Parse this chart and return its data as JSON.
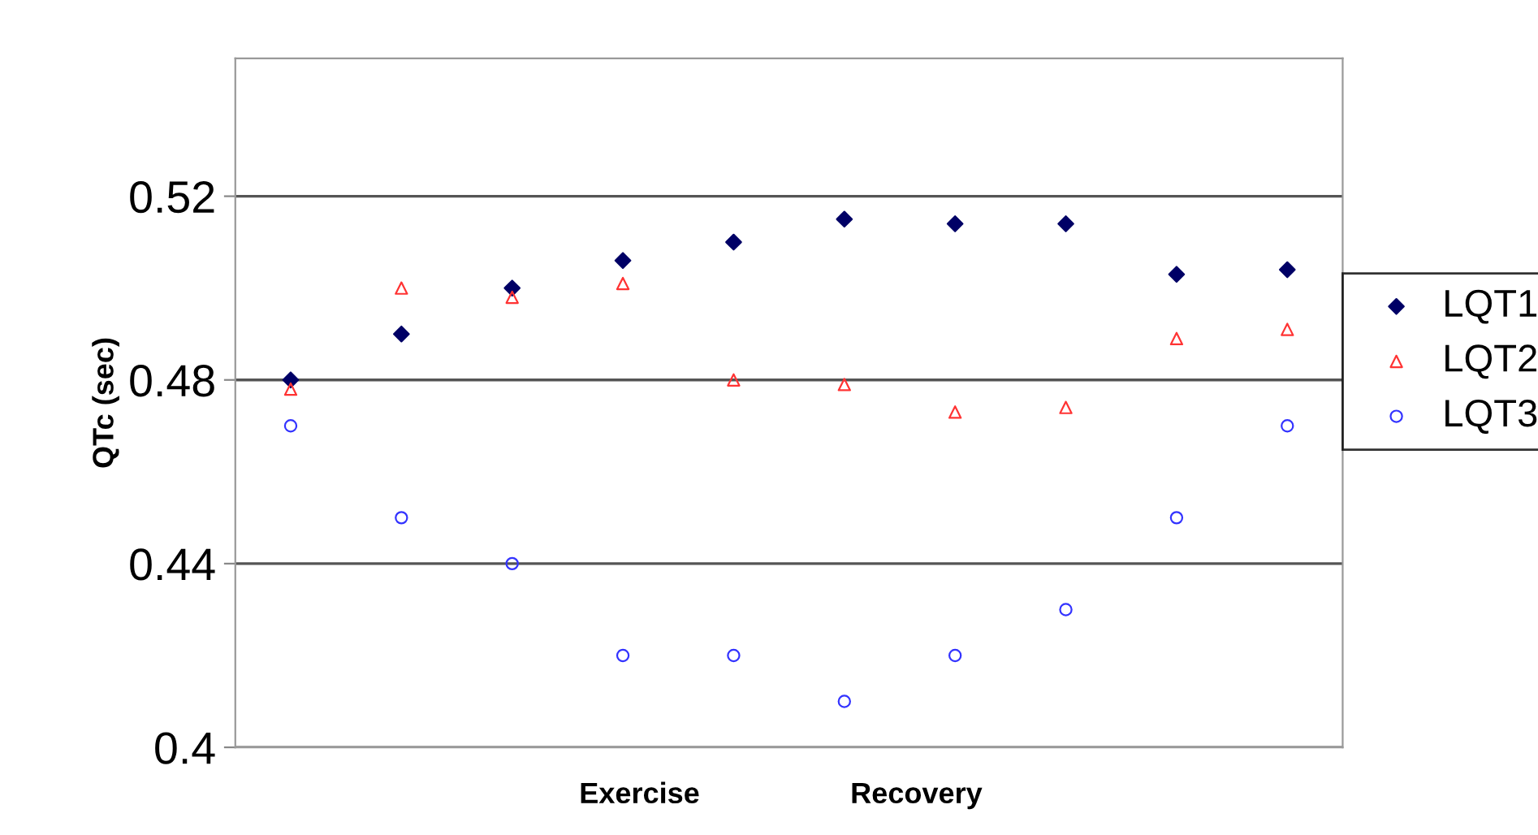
{
  "chart_data": {
    "type": "scatter",
    "ylabel": "QTc (sec)",
    "categories": [
      null,
      null,
      null,
      null,
      null,
      null,
      null,
      null,
      null,
      null
    ],
    "series": [
      {
        "name": "LQT1",
        "color": "#000066",
        "marker": "diamond",
        "values": [
          0.48,
          0.49,
          0.5,
          0.506,
          0.51,
          0.515,
          0.514,
          0.514,
          0.503,
          0.504
        ]
      },
      {
        "name": "LQT2",
        "color": "#ff3333",
        "marker": "triangle",
        "values": [
          0.478,
          0.5,
          0.498,
          0.501,
          0.48,
          0.479,
          0.473,
          0.474,
          0.489,
          0.491
        ]
      },
      {
        "name": "LQT3",
        "color": "#3333ff",
        "marker": "circle",
        "values": [
          0.47,
          0.45,
          0.44,
          0.42,
          0.42,
          0.41,
          0.42,
          0.43,
          0.45,
          0.47
        ]
      }
    ],
    "ylim": [
      0.4,
      0.55
    ],
    "yticks": [
      {
        "value": 0.4,
        "label": "0.4"
      },
      0.44,
      0.48,
      0.52
    ],
    "grid": "y",
    "legend": "right",
    "annotations": [
      "Exercise",
      "Recovery"
    ]
  }
}
